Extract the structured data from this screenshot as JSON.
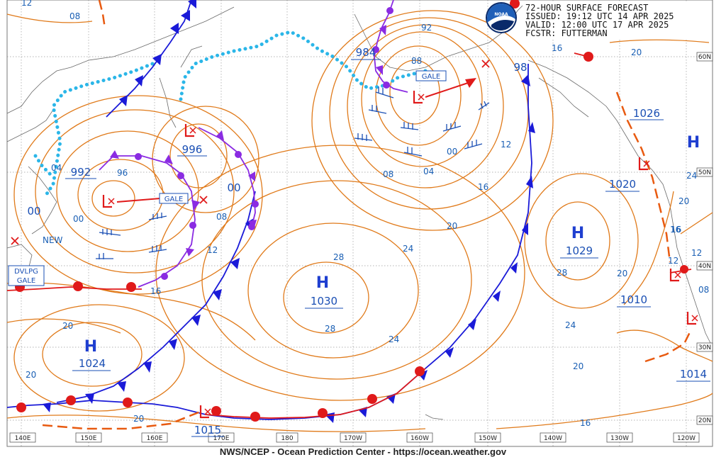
{
  "header": {
    "title": "72-HOUR SURFACE FORECAST",
    "issued": "ISSUED: 19:12 UTC 14 APR 2025",
    "valid": "VALID:  12:00 UTC 17 APR 2025",
    "forecaster": "FCSTR:  FUTTERMAN"
  },
  "footer": "NWS/NCEP - Ocean Prediction Center - https://ocean.weather.gov",
  "logo_icon": "noaa-logo-icon",
  "longitudes": [
    "140E",
    "150E",
    "160E",
    "170E",
    "180",
    "170W",
    "160W",
    "150W",
    "140W",
    "130W",
    "120W"
  ],
  "latitudes": [
    "60N",
    "50N",
    "40N",
    "30N",
    "20N"
  ],
  "highs": [
    {
      "letter": "H",
      "value": "1030"
    },
    {
      "letter": "H",
      "value": "1029"
    },
    {
      "letter": "H",
      "value": "1024"
    },
    {
      "letter": "H",
      "value": ""
    }
  ],
  "lows": [
    {
      "value": "992"
    },
    {
      "value": "996"
    },
    {
      "value": "984"
    },
    {
      "value": "1015"
    }
  ],
  "other_pressure_labels": [
    "1026",
    "1020",
    "1010",
    "1014",
    "98",
    "00",
    "00"
  ],
  "warnings": [
    {
      "text": "GALE"
    },
    {
      "text": "GALE"
    },
    {
      "text": "GALE"
    },
    {
      "text": "DVLPG"
    }
  ],
  "isobar_labels": [
    "08",
    "04",
    "96",
    "00",
    "08",
    "12",
    "16",
    "20",
    "24",
    "28",
    "28",
    "24",
    "20",
    "16",
    "12",
    "08",
    "04",
    "00",
    "92",
    "88",
    "12",
    "16",
    "20",
    "24",
    "20",
    "16",
    "20",
    "24",
    "28",
    "12",
    "08",
    "16",
    "20",
    "20",
    "20",
    "12",
    "16",
    "NEW"
  ],
  "colors": {
    "isobar": "#e07a1a",
    "cold_front": "#1a1ad8",
    "warm_front": "#e01a1a",
    "occluded_front": "#8a2be2",
    "ice_edge": "#2bb6e8",
    "trough": "#e85a10",
    "text_blue": "#1a4fb4",
    "low_red": "#e01a1a"
  }
}
